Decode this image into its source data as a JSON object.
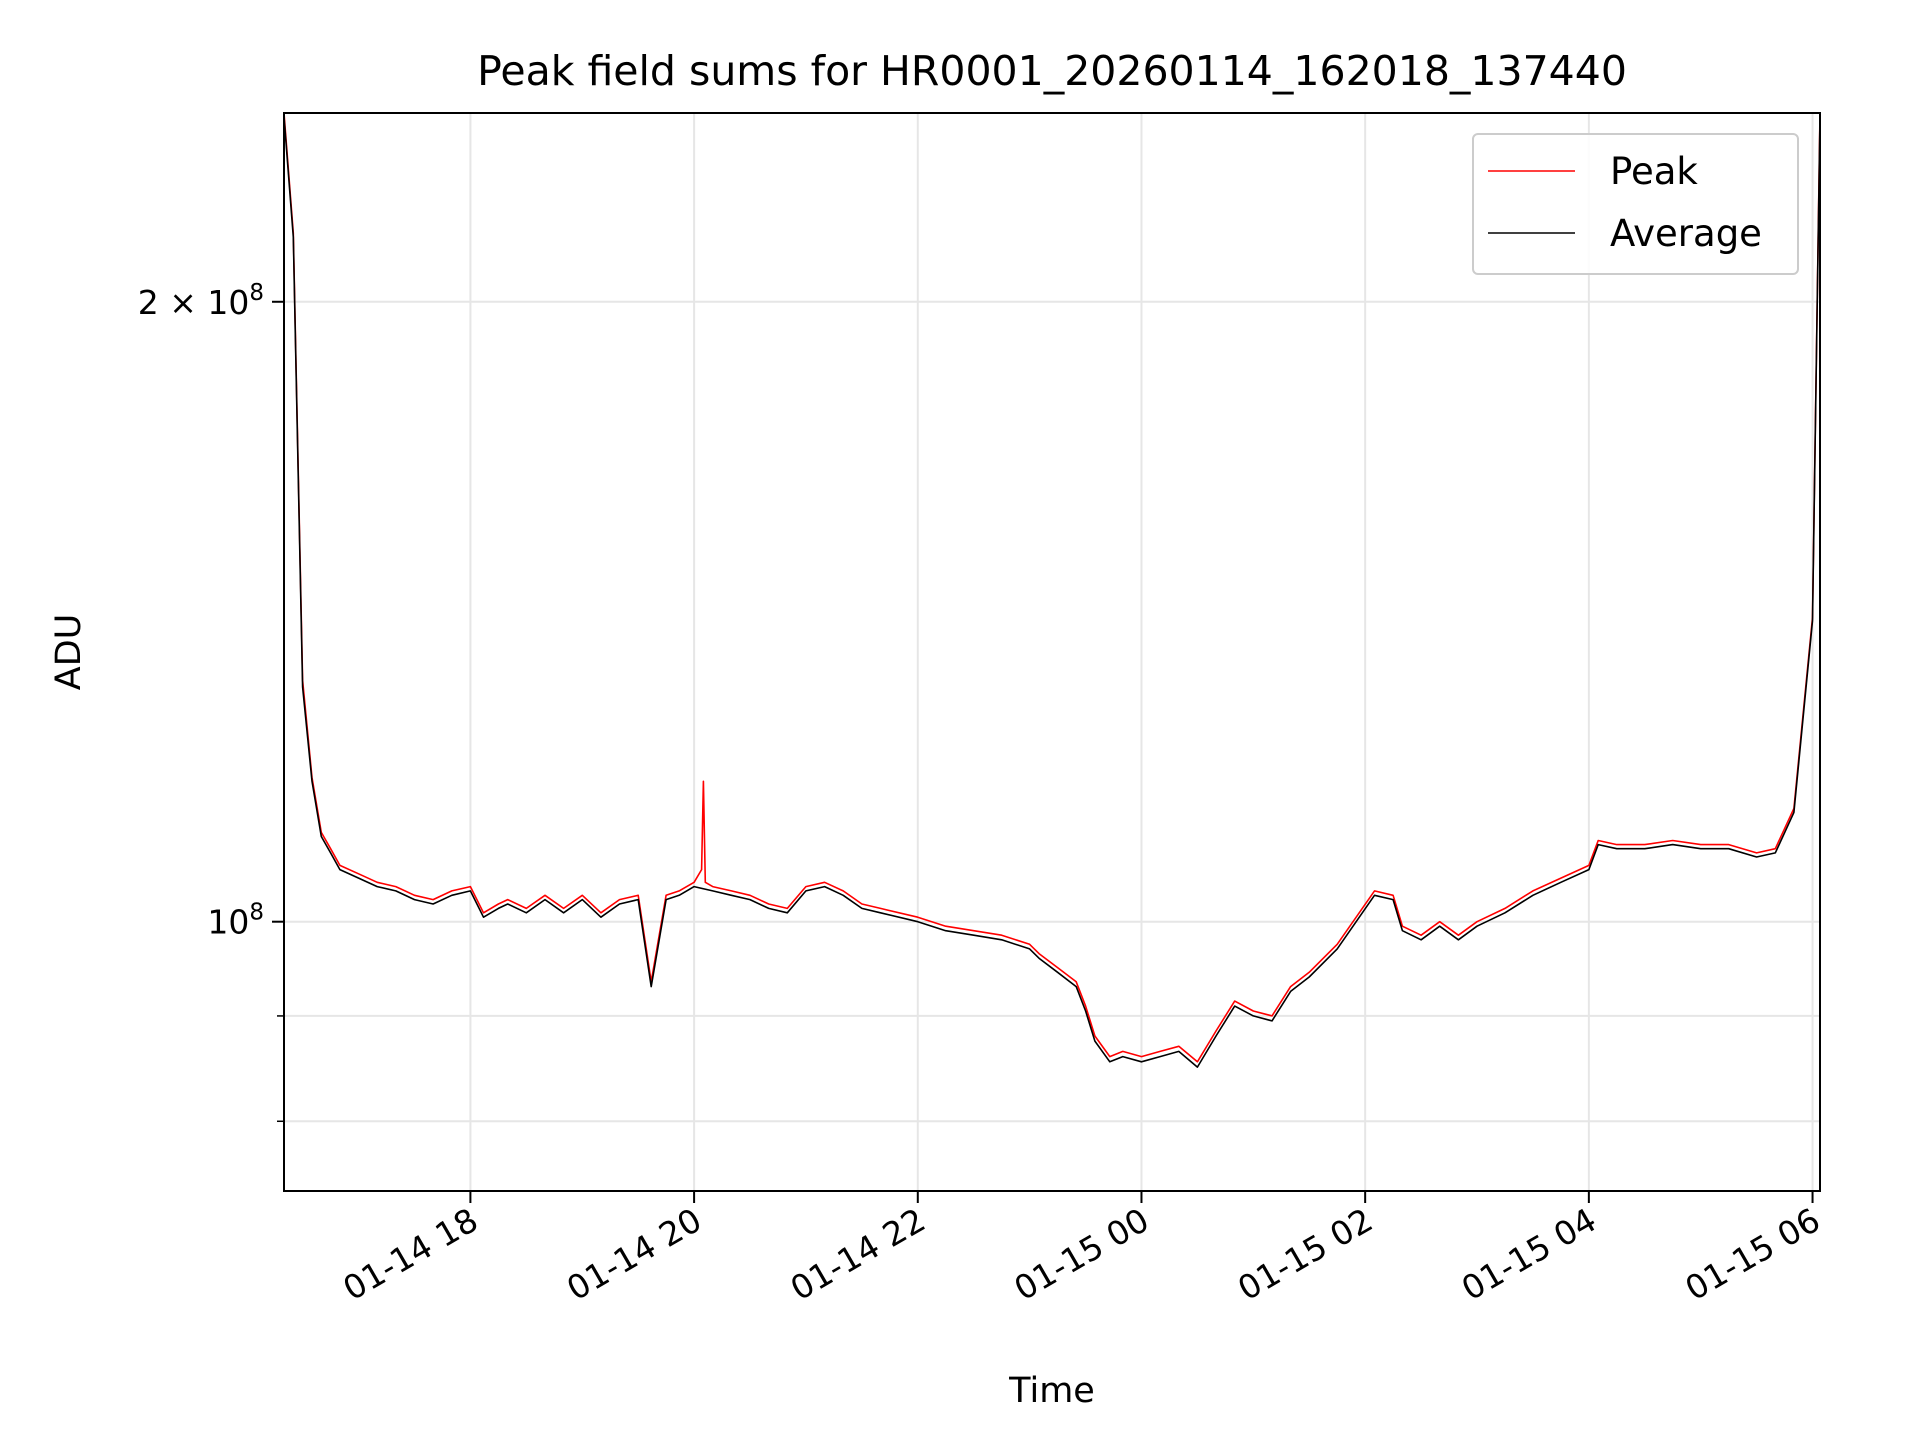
{
  "chart_data": {
    "type": "line",
    "title": "Peak field sums for HR0001_20260114_162018_137440",
    "xlabel": "Time",
    "ylabel": "ADU",
    "x_axis": {
      "kind": "datetime",
      "range": [
        "2026-01-14 16:20",
        "2026-01-15 06:04"
      ],
      "ticks": [
        "01-14 18",
        "01-14 20",
        "01-14 22",
        "01-15 00",
        "01-15 02",
        "01-15 04",
        "01-15 06"
      ],
      "tick_values": [
        "2026-01-14 18:00",
        "2026-01-14 20:00",
        "2026-01-14 22:00",
        "2026-01-15 00:00",
        "2026-01-15 02:00",
        "2026-01-15 04:00",
        "2026-01-15 06:00"
      ]
    },
    "y_axis": {
      "scale": "log",
      "range": [
        74000000,
        247000000
      ],
      "major_ticks": [
        {
          "value": 100000000,
          "mantissa": "",
          "exponent": "8"
        },
        {
          "value": 200000000,
          "mantissa": "2",
          "exponent": "8"
        }
      ],
      "minor_tick_values": [
        80000000,
        90000000
      ]
    },
    "grid": true,
    "legend": {
      "position": "top-right",
      "entries": [
        {
          "label": "Peak",
          "color": "#ff0000"
        },
        {
          "label": "Average",
          "color": "#000000"
        }
      ]
    },
    "series": [
      {
        "name": "Average",
        "color": "#000000",
        "x": [
          "2026-01-14 16:20",
          "2026-01-14 16:25",
          "2026-01-14 16:30",
          "2026-01-14 16:35",
          "2026-01-14 16:40",
          "2026-01-14 16:45",
          "2026-01-14 16:50",
          "2026-01-14 17:00",
          "2026-01-14 17:10",
          "2026-01-14 17:20",
          "2026-01-14 17:30",
          "2026-01-14 17:40",
          "2026-01-14 17:50",
          "2026-01-14 18:00",
          "2026-01-14 18:07",
          "2026-01-14 18:15",
          "2026-01-14 18:20",
          "2026-01-14 18:30",
          "2026-01-14 18:40",
          "2026-01-14 18:50",
          "2026-01-14 19:00",
          "2026-01-14 19:10",
          "2026-01-14 19:20",
          "2026-01-14 19:30",
          "2026-01-14 19:37",
          "2026-01-14 19:45",
          "2026-01-14 19:52",
          "2026-01-14 20:00",
          "2026-01-14 20:10",
          "2026-01-14 20:20",
          "2026-01-14 20:30",
          "2026-01-14 20:40",
          "2026-01-14 20:50",
          "2026-01-14 21:00",
          "2026-01-14 21:10",
          "2026-01-14 21:20",
          "2026-01-14 21:30",
          "2026-01-14 21:40",
          "2026-01-14 22:00",
          "2026-01-14 22:15",
          "2026-01-14 22:30",
          "2026-01-14 22:45",
          "2026-01-14 23:00",
          "2026-01-14 23:05",
          "2026-01-14 23:15",
          "2026-01-14 23:25",
          "2026-01-14 23:30",
          "2026-01-14 23:35",
          "2026-01-14 23:43",
          "2026-01-14 23:50",
          "2026-01-15 00:00",
          "2026-01-15 00:10",
          "2026-01-15 00:20",
          "2026-01-15 00:30",
          "2026-01-15 00:40",
          "2026-01-15 00:50",
          "2026-01-15 01:00",
          "2026-01-15 01:10",
          "2026-01-15 01:20",
          "2026-01-15 01:30",
          "2026-01-15 01:45",
          "2026-01-15 02:05",
          "2026-01-15 02:15",
          "2026-01-15 02:20",
          "2026-01-15 02:30",
          "2026-01-15 02:40",
          "2026-01-15 02:50",
          "2026-01-15 03:00",
          "2026-01-15 03:15",
          "2026-01-15 03:30",
          "2026-01-15 03:45",
          "2026-01-15 04:00",
          "2026-01-15 04:05",
          "2026-01-15 04:15",
          "2026-01-15 04:30",
          "2026-01-15 04:45",
          "2026-01-15 05:00",
          "2026-01-15 05:15",
          "2026-01-15 05:30",
          "2026-01-15 05:40",
          "2026-01-15 05:50",
          "2026-01-15 06:00",
          "2026-01-15 06:04"
        ],
        "values": [
          246000000,
          215000000,
          130000000,
          117000000,
          110000000,
          108000000,
          106000000,
          105000000,
          104000000,
          103500000,
          102500000,
          102000000,
          103000000,
          103500000,
          100500000,
          101500000,
          102000000,
          101000000,
          102500000,
          101000000,
          102500000,
          100500000,
          102000000,
          102500000,
          93000000,
          102500000,
          103000000,
          104000000,
          103500000,
          103000000,
          102500000,
          101500000,
          101000000,
          103500000,
          104000000,
          103000000,
          101500000,
          101000000,
          100000000,
          99000000,
          98500000,
          98000000,
          97000000,
          96000000,
          94500000,
          93000000,
          90500000,
          87500000,
          85500000,
          86000000,
          85500000,
          86000000,
          86500000,
          85000000,
          88000000,
          91000000,
          90000000,
          89500000,
          92500000,
          94000000,
          97000000,
          103000000,
          102500000,
          99000000,
          98000000,
          99500000,
          98000000,
          99500000,
          101000000,
          103000000,
          104500000,
          106000000,
          109000000,
          108500000,
          108500000,
          109000000,
          108500000,
          108500000,
          107500000,
          108000000,
          113000000,
          140000000,
          246000000
        ]
      },
      {
        "name": "Peak",
        "color": "#ff0000",
        "x": [
          "2026-01-14 16:20",
          "2026-01-14 16:25",
          "2026-01-14 16:30",
          "2026-01-14 16:35",
          "2026-01-14 16:40",
          "2026-01-14 16:45",
          "2026-01-14 16:50",
          "2026-01-14 17:00",
          "2026-01-14 17:10",
          "2026-01-14 17:20",
          "2026-01-14 17:30",
          "2026-01-14 17:40",
          "2026-01-14 17:50",
          "2026-01-14 18:00",
          "2026-01-14 18:07",
          "2026-01-14 18:15",
          "2026-01-14 18:20",
          "2026-01-14 18:30",
          "2026-01-14 18:40",
          "2026-01-14 18:50",
          "2026-01-14 19:00",
          "2026-01-14 19:10",
          "2026-01-14 19:20",
          "2026-01-14 19:30",
          "2026-01-14 19:37",
          "2026-01-14 19:45",
          "2026-01-14 19:52",
          "2026-01-14 20:00",
          "2026-01-14 20:04",
          "2026-01-14 20:05",
          "2026-01-14 20:06",
          "2026-01-14 20:10",
          "2026-01-14 20:20",
          "2026-01-14 20:30",
          "2026-01-14 20:40",
          "2026-01-14 20:50",
          "2026-01-14 21:00",
          "2026-01-14 21:10",
          "2026-01-14 21:20",
          "2026-01-14 21:30",
          "2026-01-14 21:40",
          "2026-01-14 22:00",
          "2026-01-14 22:15",
          "2026-01-14 22:30",
          "2026-01-14 22:45",
          "2026-01-14 23:00",
          "2026-01-14 23:05",
          "2026-01-14 23:15",
          "2026-01-14 23:25",
          "2026-01-14 23:30",
          "2026-01-14 23:35",
          "2026-01-14 23:43",
          "2026-01-14 23:50",
          "2026-01-15 00:00",
          "2026-01-15 00:10",
          "2026-01-15 00:20",
          "2026-01-15 00:30",
          "2026-01-15 00:40",
          "2026-01-15 00:50",
          "2026-01-15 01:00",
          "2026-01-15 01:10",
          "2026-01-15 01:20",
          "2026-01-15 01:30",
          "2026-01-15 01:45",
          "2026-01-15 02:05",
          "2026-01-15 02:15",
          "2026-01-15 02:20",
          "2026-01-15 02:30",
          "2026-01-15 02:40",
          "2026-01-15 02:50",
          "2026-01-15 03:00",
          "2026-01-15 03:15",
          "2026-01-15 03:30",
          "2026-01-15 03:45",
          "2026-01-15 04:00",
          "2026-01-15 04:05",
          "2026-01-15 04:15",
          "2026-01-15 04:30",
          "2026-01-15 04:45",
          "2026-01-15 05:00",
          "2026-01-15 05:15",
          "2026-01-15 05:30",
          "2026-01-15 05:40",
          "2026-01-15 05:50",
          "2026-01-15 06:00",
          "2026-01-15 06:04"
        ],
        "values": [
          247000000,
          216000000,
          131000000,
          117500000,
          110500000,
          108500000,
          106500000,
          105500000,
          104500000,
          104000000,
          103000000,
          102500000,
          103500000,
          104000000,
          101000000,
          102000000,
          102500000,
          101500000,
          103000000,
          101500000,
          103000000,
          101000000,
          102500000,
          103000000,
          93500000,
          103000000,
          103500000,
          104500000,
          106000000,
          117000000,
          104500000,
          104000000,
          103500000,
          103000000,
          102000000,
          101500000,
          104000000,
          104500000,
          103500000,
          102000000,
          101500000,
          100500000,
          99500000,
          99000000,
          98500000,
          97500000,
          96500000,
          95000000,
          93500000,
          91000000,
          88000000,
          86000000,
          86500000,
          86000000,
          86500000,
          87000000,
          85500000,
          88500000,
          91500000,
          90500000,
          90000000,
          93000000,
          94500000,
          97500000,
          103500000,
          103000000,
          99500000,
          98500000,
          100000000,
          98500000,
          100000000,
          101500000,
          103500000,
          105000000,
          106500000,
          109500000,
          109000000,
          109000000,
          109500000,
          109000000,
          109000000,
          108000000,
          108500000,
          113500000,
          140500000,
          247000000
        ]
      }
    ]
  }
}
